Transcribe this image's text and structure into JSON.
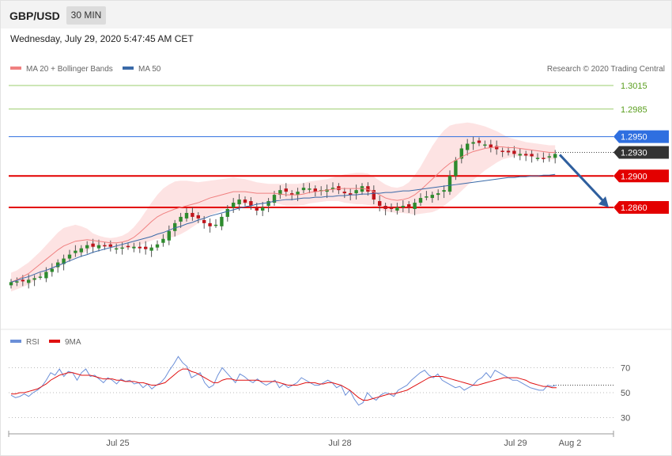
{
  "header": {
    "symbol": "GBP/USD",
    "timeframe": "30 MIN"
  },
  "datetime": "Wednesday, July 29, 2020 5:47:45 AM CET",
  "credit": "Research © 2020 Trading Central",
  "legend": {
    "ma20": "MA 20 + Bollinger Bands",
    "ma50": "MA 50",
    "rsi": "RSI",
    "rsi_ma": "9MA"
  },
  "colors": {
    "ma20": "#f08080",
    "ma50": "#3a6aa8",
    "bb_fill": "#fde0e0",
    "up": "#2e8b2e",
    "down": "#c0141c",
    "resistance": "#9bcc6c",
    "pivot": "#2f6fe0",
    "support": "#e30000",
    "arrow": "#2f5f9e",
    "rsi": "#6b8fd8",
    "rsi_ma": "#e01010"
  },
  "chart_data": {
    "type": "line",
    "title": "GBP/USD 30 MIN",
    "y_range": [
      1.275,
      1.303
    ],
    "x_labels": [
      "Jul 25",
      "Jul 28",
      "Jul 29",
      "Aug 2"
    ],
    "levels": [
      {
        "value": 1.3015,
        "label": "1.3015",
        "kind": "resistance"
      },
      {
        "value": 1.2985,
        "label": "1.2985",
        "kind": "resistance"
      },
      {
        "value": 1.295,
        "label": "1.2950",
        "kind": "pivot"
      },
      {
        "value": 1.293,
        "label": "1.2930",
        "kind": "last"
      },
      {
        "value": 1.29,
        "label": "1.2900",
        "kind": "support"
      },
      {
        "value": 1.286,
        "label": "1.2860",
        "kind": "support"
      }
    ],
    "arrow": {
      "from": 1.2927,
      "to": 1.286,
      "direction": "down"
    },
    "price_series": [
      1.2765,
      1.2766,
      1.2766,
      1.2768,
      1.277,
      1.2772,
      1.2778,
      1.2782,
      1.279,
      1.2795,
      1.28,
      1.2805,
      1.2808,
      1.2812,
      1.281,
      1.2812,
      1.2811,
      1.281,
      1.2808,
      1.2809,
      1.281,
      1.281,
      1.2808,
      1.2807,
      1.2809,
      1.2813,
      1.282,
      1.283,
      1.284,
      1.2848,
      1.2853,
      1.2848,
      1.2846,
      1.284,
      1.2836,
      1.2838,
      1.2848,
      1.2858,
      1.2866,
      1.287,
      1.2866,
      1.2862,
      1.2856,
      1.286,
      1.2868,
      1.2876,
      1.2882,
      1.288,
      1.2876,
      1.288,
      1.2885,
      1.2884,
      1.288,
      1.2882,
      1.2883,
      1.2885,
      1.2882,
      1.2878,
      1.2876,
      1.2882,
      1.2887,
      1.288,
      1.287,
      1.2862,
      1.2858,
      1.2858,
      1.286,
      1.2862,
      1.286,
      1.2866,
      1.2872,
      1.2874,
      1.2876,
      1.2878,
      1.2882,
      1.29,
      1.292,
      1.2935,
      1.2941,
      1.2943,
      1.2942,
      1.294,
      1.2936,
      1.2934,
      1.2932,
      1.293,
      1.2928,
      1.2928,
      1.2926,
      1.2925,
      1.2923,
      1.2922,
      1.2925,
      1.2928
    ],
    "ma20_series": [
      1.2765,
      1.2768,
      1.2772,
      1.2776,
      1.2782,
      1.2788,
      1.2794,
      1.28,
      1.2806,
      1.2811,
      1.2814,
      1.2817,
      1.2818,
      1.2819,
      1.2818,
      1.2817,
      1.2816,
      1.2815,
      1.2815,
      1.2816,
      1.2818,
      1.2822,
      1.2828,
      1.2835,
      1.2842,
      1.2848,
      1.2852,
      1.2855,
      1.2858,
      1.286,
      1.2862,
      1.2864,
      1.2866,
      1.2869,
      1.2872,
      1.2874,
      1.2876,
      1.2878,
      1.288,
      1.288,
      1.288,
      1.2879,
      1.2878,
      1.2878,
      1.2878,
      1.2878,
      1.2877,
      1.2876,
      1.2876,
      1.2876,
      1.2877,
      1.2879,
      1.288,
      1.2881,
      1.2882,
      1.2883,
      1.2884,
      1.2884,
      1.2884,
      1.2884,
      1.2884,
      1.2883,
      1.288,
      1.2876,
      1.2872,
      1.287,
      1.2869,
      1.287,
      1.2872,
      1.2876,
      1.2882,
      1.2889,
      1.2896,
      1.2903,
      1.291,
      1.2916,
      1.292,
      1.2924,
      1.2928,
      1.2931,
      1.2933,
      1.2935,
      1.2936,
      1.2937,
      1.2937,
      1.2936,
      1.2936,
      1.2935,
      1.2934,
      1.2933,
      1.2932,
      1.2931,
      1.293,
      1.293
    ],
    "ma50_series": [
      1.2765,
      1.2767,
      1.277,
      1.2772,
      1.2775,
      1.2778,
      1.278,
      1.2783,
      1.2786,
      1.2789,
      1.2792,
      1.2795,
      1.2798,
      1.28,
      1.2803,
      1.2805,
      1.2807,
      1.2809,
      1.2811,
      1.2813,
      1.2815,
      1.2817,
      1.2819,
      1.2821,
      1.2823,
      1.2826,
      1.2828,
      1.2831,
      1.2834,
      1.2836,
      1.2839,
      1.2841,
      1.2844,
      1.2846,
      1.2849,
      1.2851,
      1.2853,
      1.2855,
      1.2857,
      1.2859,
      1.2861,
      1.2862,
      1.2864,
      1.2865,
      1.2866,
      1.2868,
      1.2869,
      1.287,
      1.287,
      1.2871,
      1.2872,
      1.2872,
      1.2873,
      1.2873,
      1.2874,
      1.2874,
      1.2875,
      1.2875,
      1.2876,
      1.2876,
      1.2877,
      1.2877,
      1.2878,
      1.2878,
      1.2879,
      1.2879,
      1.288,
      1.2881,
      1.2881,
      1.2882,
      1.2883,
      1.2884,
      1.2885,
      1.2886,
      1.2887,
      1.2888,
      1.2889,
      1.289,
      1.2891,
      1.2892,
      1.2893,
      1.2894,
      1.2895,
      1.2896,
      1.2897,
      1.2898,
      1.2898,
      1.2899,
      1.2899,
      1.29,
      1.29,
      1.2901,
      1.2901,
      1.2902
    ],
    "bb_width": [
      0.0012,
      0.0012,
      0.0013,
      0.0014,
      0.0015,
      0.0016,
      0.0018,
      0.002,
      0.0022,
      0.0023,
      0.0022,
      0.0021,
      0.0018,
      0.0014,
      0.0009,
      0.0007,
      0.0006,
      0.0006,
      0.0007,
      0.0008,
      0.001,
      0.0013,
      0.0016,
      0.002,
      0.0024,
      0.0028,
      0.0032,
      0.0034,
      0.0035,
      0.0034,
      0.0032,
      0.0029,
      0.0026,
      0.0024,
      0.0022,
      0.0021,
      0.002,
      0.0019,
      0.0018,
      0.0017,
      0.0016,
      0.0015,
      0.0014,
      0.0013,
      0.0012,
      0.0012,
      0.0013,
      0.0014,
      0.0014,
      0.0014,
      0.0014,
      0.0014,
      0.0014,
      0.0014,
      0.0014,
      0.0015,
      0.0016,
      0.0018,
      0.0019,
      0.002,
      0.002,
      0.002,
      0.0019,
      0.0018,
      0.0017,
      0.0016,
      0.0016,
      0.0017,
      0.002,
      0.0025,
      0.003,
      0.0036,
      0.0042,
      0.0046,
      0.0048,
      0.0048,
      0.0046,
      0.0043,
      0.004,
      0.0036,
      0.0032,
      0.0028,
      0.0024,
      0.002,
      0.0016,
      0.0013,
      0.0011,
      0.001,
      0.0009,
      0.0009,
      0.0009,
      0.0009,
      0.0009,
      0.0009
    ],
    "rsi": {
      "y_range": [
        20,
        85
      ],
      "ticks": [
        70,
        50,
        30
      ],
      "rsi_series": [
        48,
        46,
        47,
        49,
        47,
        50,
        52,
        55,
        60,
        66,
        64,
        69,
        63,
        67,
        66,
        60,
        66,
        69,
        63,
        64,
        61,
        58,
        62,
        60,
        57,
        61,
        59,
        60,
        57,
        58,
        54,
        57,
        53,
        56,
        58,
        62,
        68,
        73,
        79,
        74,
        71,
        62,
        64,
        66,
        58,
        54,
        56,
        64,
        70,
        66,
        62,
        58,
        65,
        63,
        60,
        58,
        61,
        58,
        56,
        58,
        60,
        54,
        57,
        54,
        56,
        58,
        62,
        60,
        58,
        56,
        56,
        58,
        60,
        58,
        54,
        56,
        48,
        52,
        45,
        40,
        42,
        50,
        46,
        44,
        48,
        50,
        49,
        47,
        52,
        54,
        56,
        60,
        63,
        66,
        68,
        64,
        62,
        65,
        60,
        58,
        56,
        54,
        55,
        52,
        54,
        56,
        60,
        62,
        66,
        62,
        68,
        66,
        64,
        62,
        60,
        60,
        58,
        56,
        54,
        53,
        52,
        52,
        56,
        55,
        56
      ],
      "ma_series": [
        49,
        49,
        50,
        50,
        51,
        52,
        53,
        55,
        57,
        60,
        62,
        64,
        65,
        66,
        66,
        65,
        64,
        64,
        64,
        63,
        62,
        61,
        61,
        61,
        60,
        60,
        59,
        59,
        59,
        58,
        58,
        57,
        56,
        56,
        57,
        58,
        61,
        64,
        67,
        69,
        69,
        67,
        66,
        64,
        62,
        60,
        58,
        58,
        60,
        61,
        61,
        60,
        60,
        60,
        60,
        60,
        60,
        59,
        59,
        59,
        59,
        58,
        57,
        56,
        56,
        56,
        57,
        58,
        58,
        58,
        57,
        57,
        58,
        58,
        57,
        56,
        54,
        52,
        49,
        46,
        44,
        44,
        45,
        46,
        47,
        48,
        49,
        49,
        50,
        51,
        52,
        54,
        56,
        58,
        60,
        62,
        63,
        63,
        63,
        62,
        61,
        60,
        59,
        58,
        57,
        56,
        56,
        57,
        58,
        59,
        60,
        61,
        62,
        62,
        62,
        62,
        61,
        60,
        58,
        57,
        56,
        55,
        55,
        54,
        54
      ]
    }
  }
}
